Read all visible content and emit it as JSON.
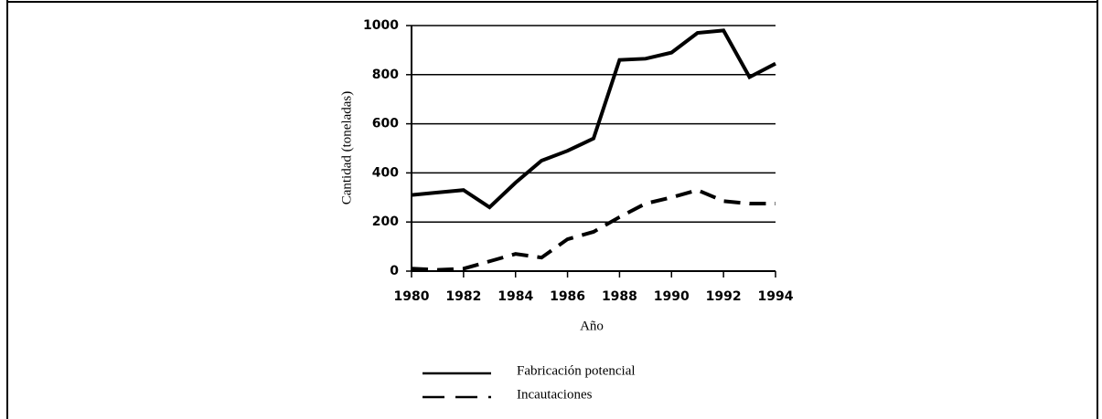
{
  "chart_data": {
    "type": "line",
    "x": [
      1980,
      1981,
      1982,
      1983,
      1984,
      1985,
      1986,
      1987,
      1988,
      1989,
      1990,
      1991,
      1992,
      1993,
      1994
    ],
    "series": [
      {
        "name": "Fabricación potencial",
        "color": "#000000",
        "style": "solid",
        "values": [
          310,
          320,
          330,
          260,
          360,
          450,
          490,
          540,
          860,
          865,
          890,
          970,
          980,
          790,
          845
        ]
      },
      {
        "name": "Incautaciones",
        "color": "#000000",
        "style": "dashed",
        "values": [
          10,
          5,
          10,
          40,
          70,
          55,
          130,
          160,
          220,
          275,
          300,
          330,
          285,
          275,
          275
        ]
      }
    ],
    "xlabel": "Año",
    "ylabel": "Cantidad (toneladas)",
    "xlim": [
      1980,
      1994
    ],
    "xticks": [
      1980,
      1982,
      1984,
      1986,
      1988,
      1990,
      1992,
      1994
    ],
    "ylim": [
      0,
      1000
    ],
    "yticks": [
      0,
      200,
      400,
      600,
      800,
      1000
    ],
    "grid": true
  }
}
